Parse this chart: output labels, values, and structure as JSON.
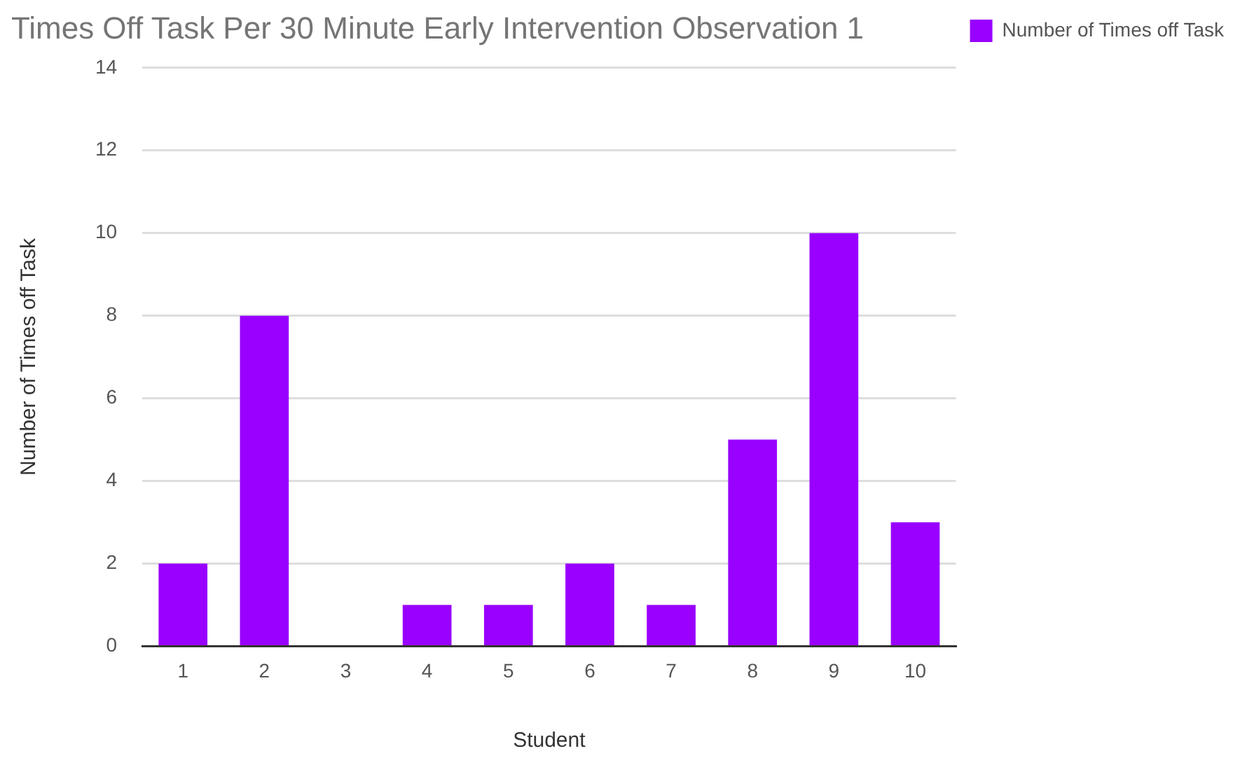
{
  "chart_data": {
    "type": "bar",
    "title": "Times Off Task Per 30 Minute Early Intervention Observation 1",
    "xlabel": "Student",
    "ylabel": "Number of Times off Task",
    "categories": [
      "1",
      "2",
      "3",
      "4",
      "5",
      "6",
      "7",
      "8",
      "9",
      "10"
    ],
    "series": [
      {
        "name": "Number of Times off Task",
        "color": "#9900ff",
        "values": [
          2,
          8,
          0,
          1,
          1,
          2,
          1,
          5,
          10,
          3
        ]
      }
    ],
    "ylim": [
      0,
      14
    ],
    "yticks": [
      0,
      2,
      4,
      6,
      8,
      10,
      12,
      14
    ],
    "grid": "y",
    "legend": "top right"
  }
}
